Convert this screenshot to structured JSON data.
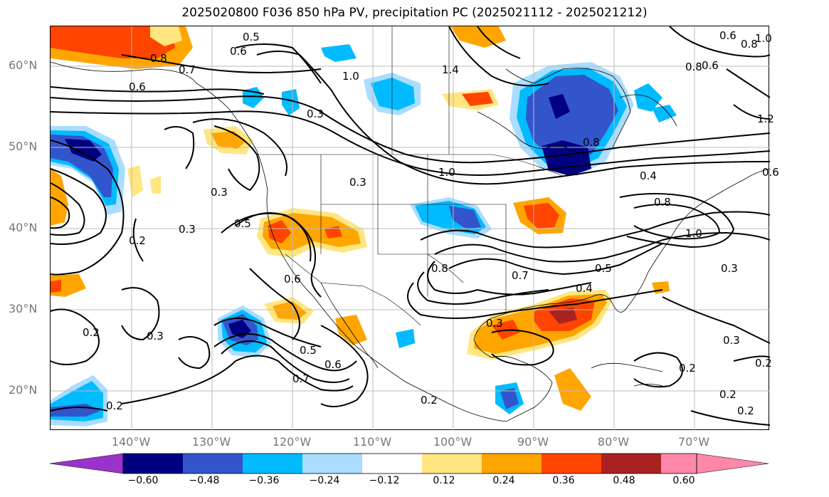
{
  "title": "2025020800 F036 850 hPa PV, precipitation PC (2025021112 - 2025021212)",
  "map": {
    "lat_ticks": [
      "60°N",
      "50°N",
      "40°N",
      "30°N",
      "20°N"
    ],
    "lon_ticks": [
      "140°W",
      "130°W",
      "120°W",
      "110°W",
      "100°W",
      "90°W",
      "80°W",
      "70°W"
    ],
    "contour_labels": [
      "0.5",
      "0.6",
      "0.8",
      "0.7",
      "0.6",
      "1.0",
      "1.4",
      "0.3",
      "0.3",
      "0.3",
      "0.3",
      "0.2",
      "0.5",
      "0.6",
      "0.5",
      "0.6",
      "0.7",
      "0.2",
      "0.3",
      "0.2",
      "0.8",
      "0.8",
      "1.0",
      "0.8",
      "1.0",
      "0.4",
      "0.7",
      "0.5",
      "0.4",
      "0.3",
      "0.3",
      "0.3",
      "0.2",
      "0.2",
      "0.2",
      "0.2",
      "0.8",
      "0.6",
      "0.6",
      "0.8",
      "1.2",
      "1.0",
      "0.2",
      "0.6"
    ]
  },
  "colorbar": {
    "tick_labels": [
      "−0.60",
      "−0.48",
      "−0.36",
      "−0.24",
      "−0.12",
      "0.12",
      "0.24",
      "0.36",
      "0.48",
      "0.60"
    ],
    "colors": [
      "#9933cc",
      "#000080",
      "#3355cc",
      "#00bbff",
      "#aaddff",
      "#ffffff",
      "#ffe680",
      "#ffa500",
      "#ff4400",
      "#aa2222",
      "#ff88aa"
    ]
  }
}
